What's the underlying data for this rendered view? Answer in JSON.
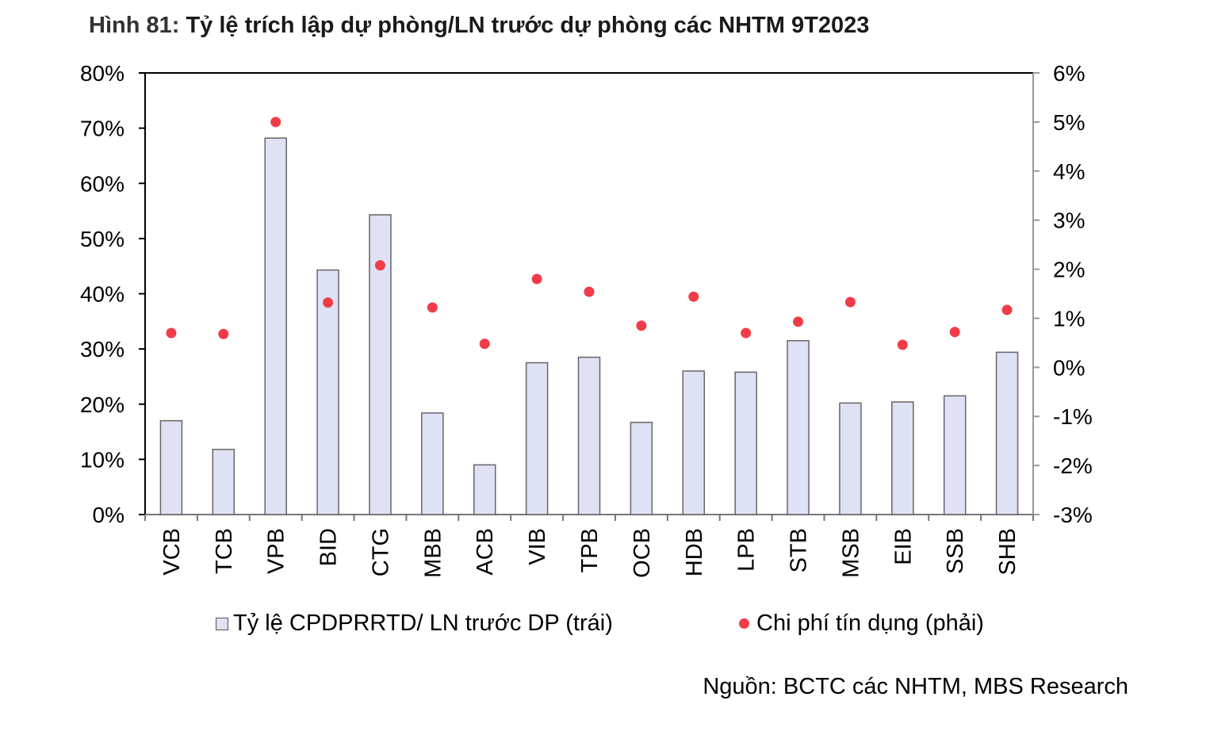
{
  "title": {
    "prefix": "Hình 81:",
    "text": "Tỷ lệ trích lập dự phòng/LN trước dự phòng các NHTM 9T2023"
  },
  "chart_data": {
    "type": "bar",
    "categories": [
      "VCB",
      "TCB",
      "VPB",
      "BID",
      "CTG",
      "MBB",
      "ACB",
      "VIB",
      "TPB",
      "OCB",
      "HDB",
      "LPB",
      "STB",
      "MSB",
      "EIB",
      "SSB",
      "SHB"
    ],
    "series": [
      {
        "name": "Tỷ lệ CPDPRRTD/ LN trước DP (trái)",
        "type": "bar",
        "axis": "left",
        "color": "#dfe1f4",
        "values": [
          17.0,
          11.8,
          68.2,
          44.3,
          54.3,
          18.4,
          9.0,
          27.5,
          28.5,
          16.7,
          26.0,
          25.8,
          31.5,
          20.2,
          20.4,
          21.5,
          29.4
        ]
      },
      {
        "name": "Chi phí tín dụng (phải)",
        "type": "scatter",
        "axis": "right",
        "color": "#f23b48",
        "values": [
          0.7,
          0.68,
          5.0,
          1.32,
          2.08,
          1.22,
          0.48,
          1.8,
          1.54,
          0.85,
          1.44,
          0.7,
          0.93,
          1.33,
          0.46,
          0.72,
          1.17
        ]
      }
    ],
    "y_left": {
      "min": 0,
      "max": 80,
      "step": 10,
      "ticks": [
        "0%",
        "10%",
        "20%",
        "30%",
        "40%",
        "50%",
        "60%",
        "70%",
        "80%"
      ]
    },
    "y_right": {
      "min": -3,
      "max": 6,
      "step": 1,
      "ticks": [
        "-3%",
        "-2%",
        "-1%",
        "0%",
        "1%",
        "2%",
        "3%",
        "4%",
        "5%",
        "6%"
      ]
    },
    "grid": false,
    "legend_position": "bottom"
  },
  "source": "Nguồn: BCTC các NHTM, MBS Research"
}
